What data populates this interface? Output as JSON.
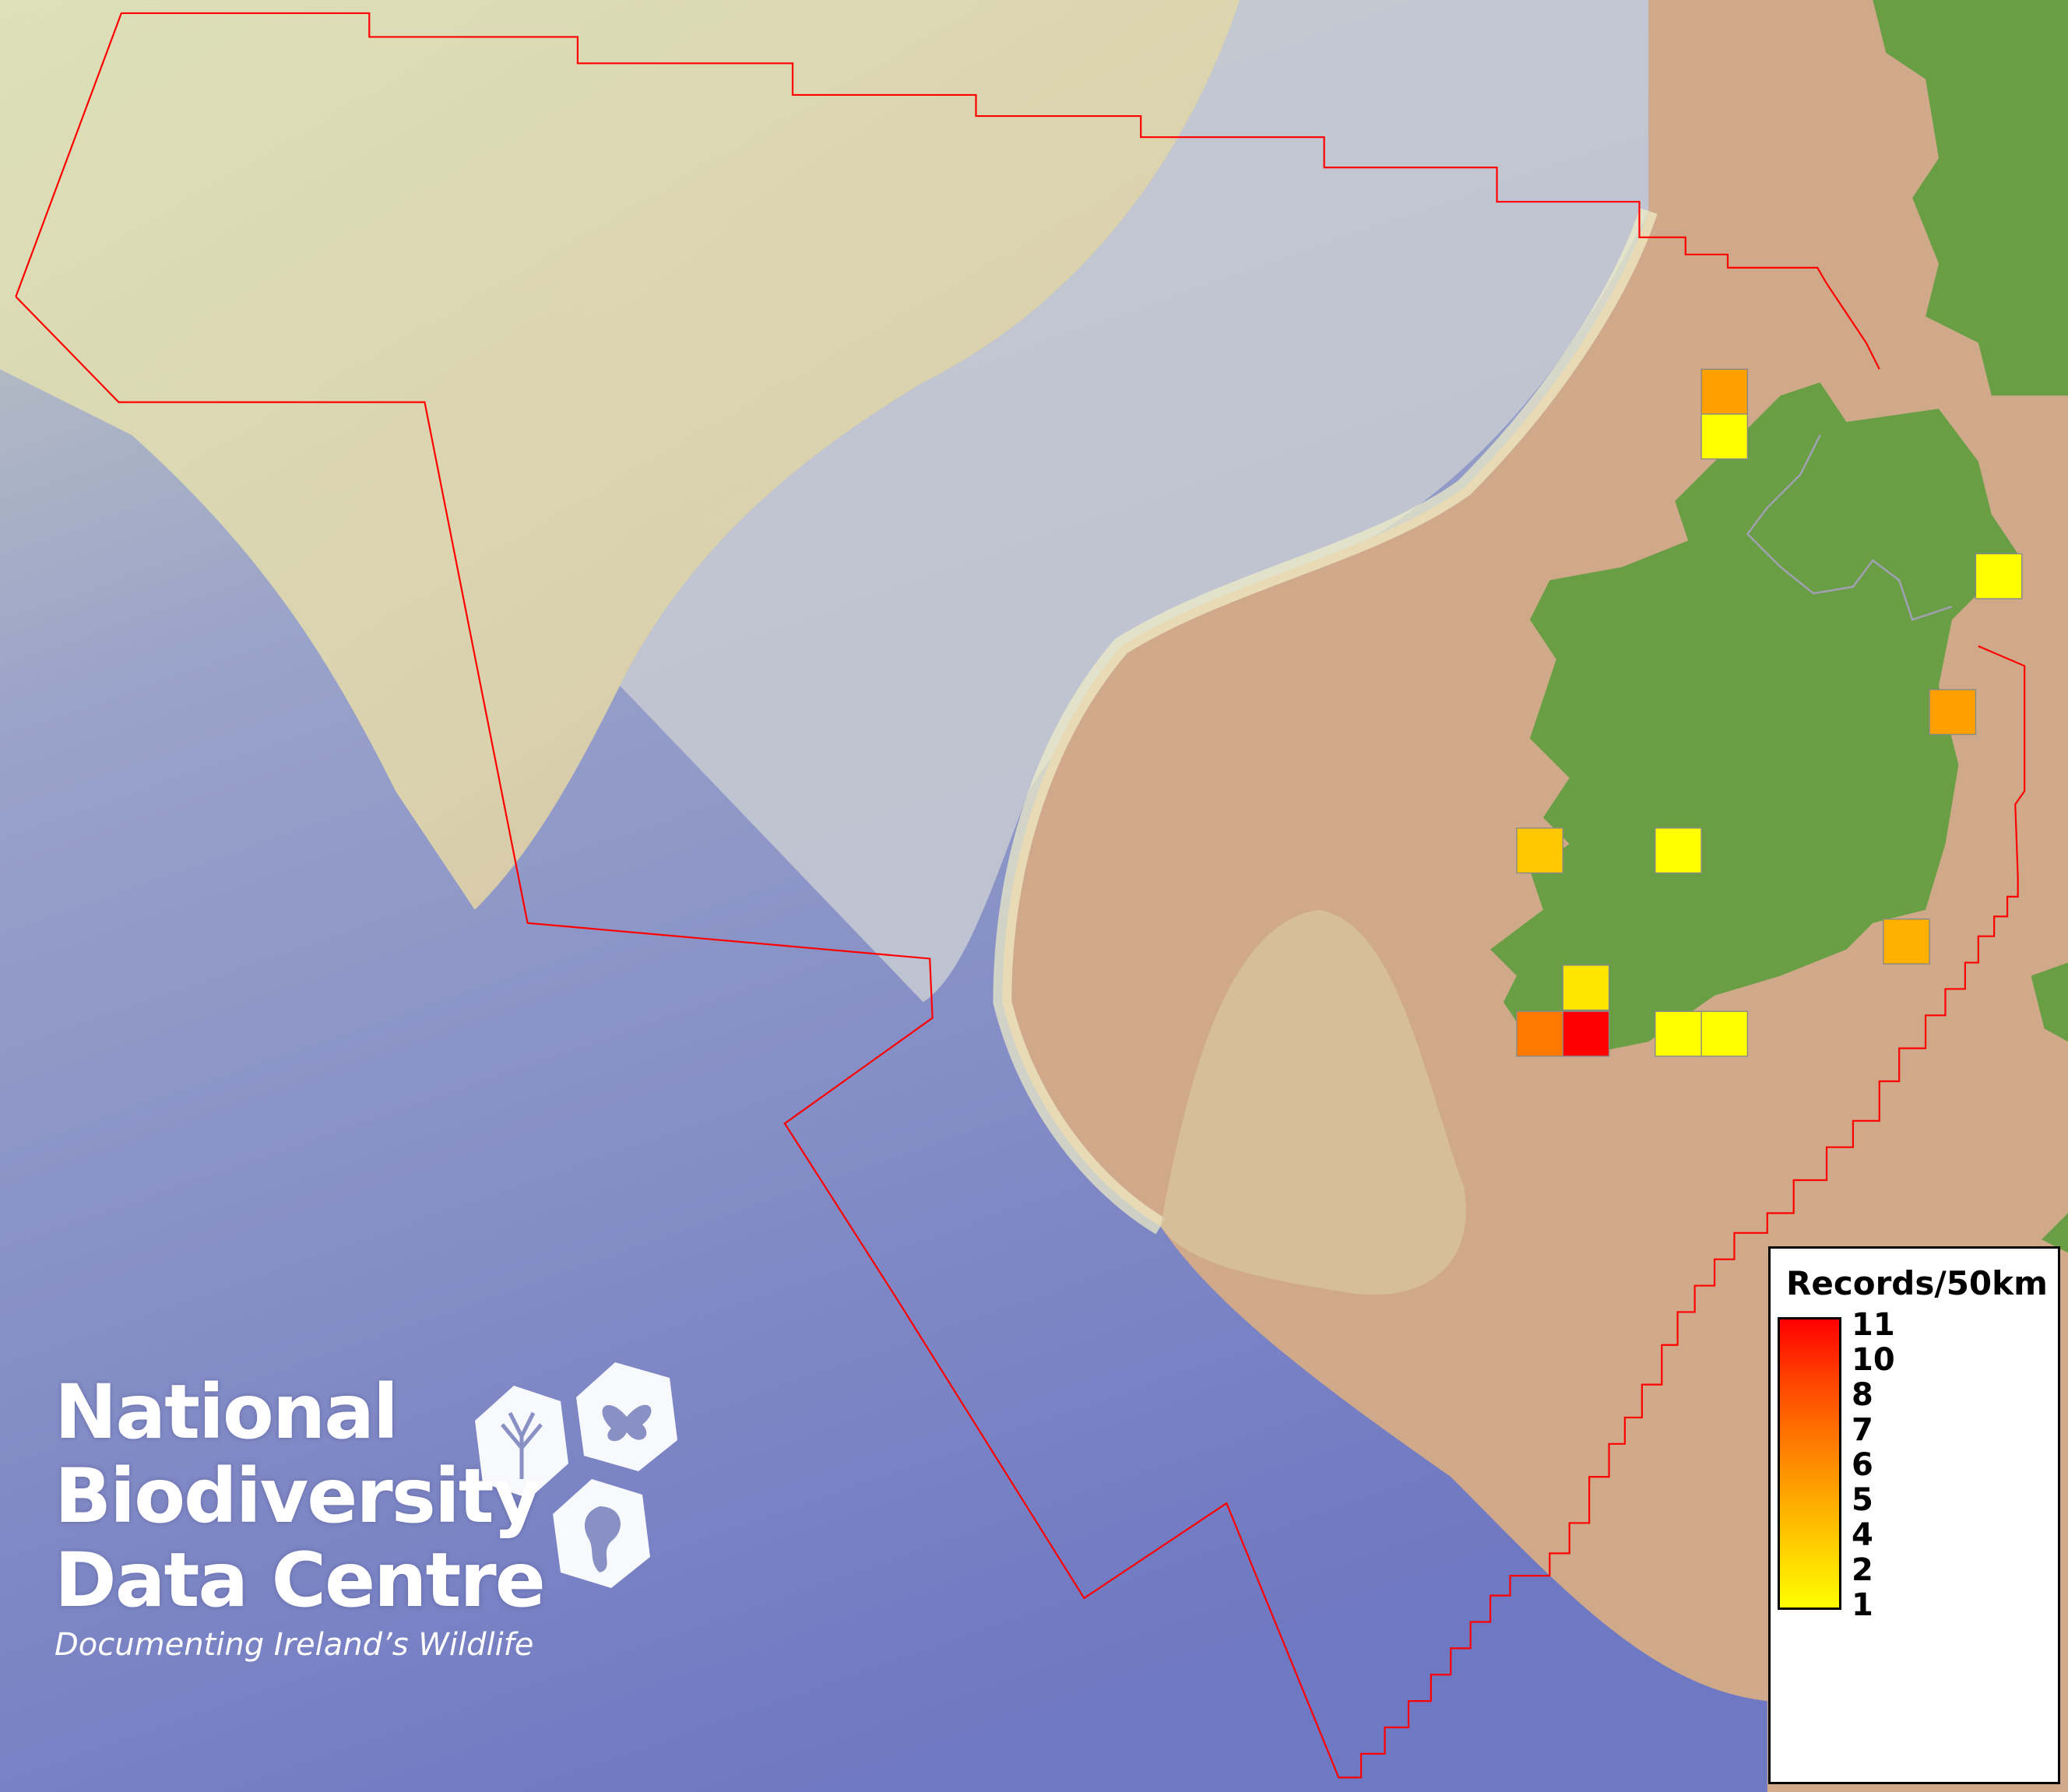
{
  "legend": {
    "title": "Records/50km",
    "ticks": [
      "11",
      "10",
      "8",
      "7",
      "6",
      "5",
      "4",
      "2",
      "1"
    ],
    "ramp_colors": [
      "#ffff00",
      "#ffb000",
      "#ff8000",
      "#ff4000",
      "#ff0000"
    ]
  },
  "logo": {
    "line1": "National",
    "line2": "Biodiversity",
    "line3": "Data Centre",
    "tagline": "Documenting Ireland’s Wildlife",
    "icons": [
      "tree-icon",
      "butterfly-icon",
      "seahorse-icon"
    ]
  },
  "colors": {
    "boundary": "#ff0000",
    "land": "#6a9e45",
    "shelf": "#cfa98a",
    "deep_sea": "#6e78c0"
  },
  "grid_cells": [
    {
      "records": 5,
      "color": "#ffa000"
    },
    {
      "records": 1,
      "color": "#ffff00"
    },
    {
      "records": 1,
      "color": "#ffff00"
    },
    {
      "records": 5,
      "color": "#ffa000"
    },
    {
      "records": 3,
      "color": "#ffc800"
    },
    {
      "records": 1,
      "color": "#ffff00"
    },
    {
      "records": 4,
      "color": "#ffb000"
    },
    {
      "records": 2,
      "color": "#ffe600"
    },
    {
      "records": 6,
      "color": "#ff7800"
    },
    {
      "records": 11,
      "color": "#ff0000"
    },
    {
      "records": 1,
      "color": "#ffff00"
    },
    {
      "records": 1,
      "color": "#ffff00"
    }
  ]
}
